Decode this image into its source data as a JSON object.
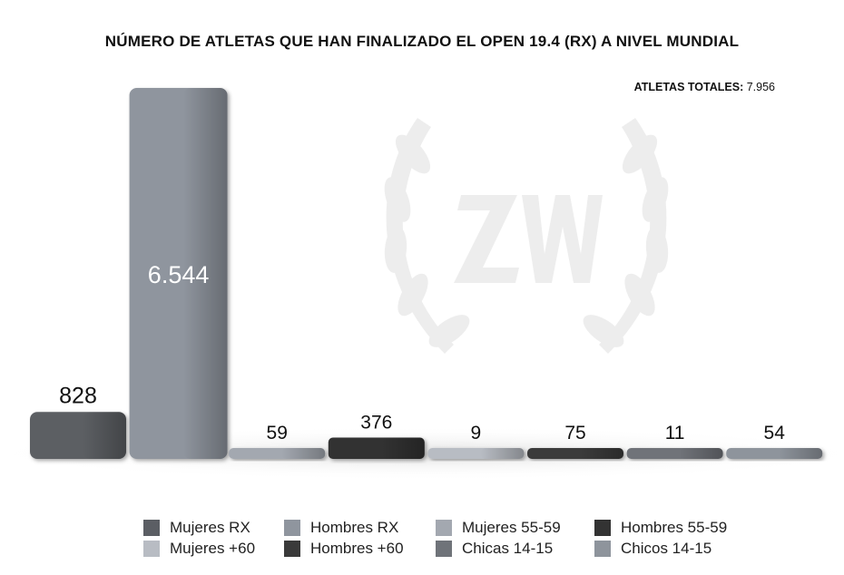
{
  "chart_data": {
    "type": "bar",
    "title": "NÚMERO DE ATLETAS QUE HAN FINALIZADO EL OPEN 19.4 (RX) A NIVEL MUNDIAL",
    "note": {
      "label": "ATLETAS TOTALES:",
      "value": "7.956"
    },
    "categories": [
      "Mujeres RX",
      "Hombres RX",
      "Mujeres 55-59",
      "Hombres 55-59",
      "Mujeres +60",
      "Hombres +60",
      "Chicas 14-15",
      "Chicos 14-15"
    ],
    "values": [
      828,
      6544,
      59,
      376,
      9,
      75,
      11,
      54
    ],
    "value_labels": [
      "828",
      "6.544",
      "59",
      "376",
      "9",
      "75",
      "11",
      "54"
    ],
    "value_label_inside": [
      false,
      true,
      false,
      false,
      false,
      false,
      false,
      false
    ],
    "colors": [
      "#5b5e64",
      "#8f959e",
      "#a3a8b0",
      "#333333",
      "#b8bcc3",
      "#3a3a3a",
      "#6f7379",
      "#8e949c"
    ],
    "ylim": [
      0,
      6544
    ],
    "grid": false,
    "legend_position": "bottom",
    "watermark": "ZW"
  }
}
